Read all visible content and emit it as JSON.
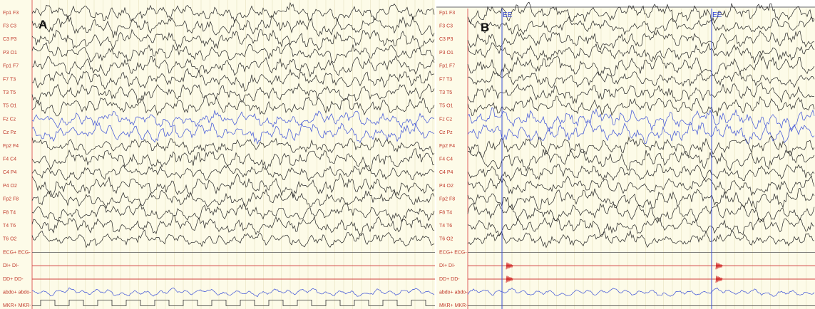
{
  "panels": [
    {
      "label": "A",
      "channels": [
        "Fp1 F3",
        "F3 C3",
        "C3 P3",
        "P3 O1",
        "Fp1 F7",
        "F7 T3",
        "T3 T5",
        "T5 O1",
        "Fz Cz",
        "Cz Pz",
        "Fp2 F4",
        "F4 C4",
        "C4 P4",
        "P4 O2",
        "Fp2 F8",
        "F8 T4",
        "T4 T6",
        "T6 O2",
        "ECG+ ECG-",
        "DI+ DI-",
        "DD+ DD-",
        "abdo+ abdo-",
        "MKR+ MKR-"
      ]
    },
    {
      "label": "B",
      "channels": [
        "Fp1 F3",
        "F3 C3",
        "C3 P3",
        "P3 O1",
        "Fp1 F7",
        "F7 T3",
        "T3 T5",
        "T5 O1",
        "Fz Cz",
        "Cz Pz",
        "Fp2 F4",
        "F4 C4",
        "C4 P4",
        "P4 O2",
        "Fp2 F8",
        "F8 T4",
        "T4 T6",
        "T6 O2",
        "ECG+ ECG-",
        "DI+ DI-",
        "DD+ DD-",
        "abdo+ abdo-",
        "MKR+ MKR-"
      ],
      "markers": [
        "EE",
        "EE"
      ]
    }
  ]
}
